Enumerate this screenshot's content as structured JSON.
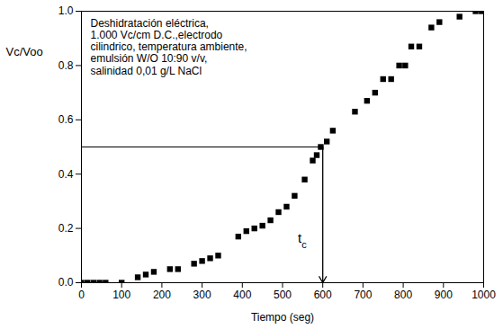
{
  "chart_data": {
    "type": "scatter",
    "marker": "square",
    "color": "#000000",
    "x_label": "Tiempo (seg)",
    "y_label": "Vc/Voo",
    "annotation": [
      "Deshidratación eléctrica,",
      "1.000 Vc/cm D.C.,electrodo",
      "cilindrico, temperatura ambiente,",
      "emulsión W/O 10:90 v/v,",
      "salinidad 0,01 g/L NaCl"
    ],
    "tc": 600,
    "tc_level": 0.5,
    "tc_label": "tc",
    "x": [
      0,
      15,
      30,
      45,
      60,
      100,
      140,
      160,
      180,
      220,
      240,
      280,
      300,
      320,
      340,
      390,
      410,
      430,
      450,
      470,
      490,
      510,
      530,
      555,
      575,
      585,
      595,
      610,
      625,
      680,
      710,
      730,
      750,
      770,
      790,
      805,
      820,
      840,
      870,
      890,
      940,
      980,
      995
    ],
    "values": [
      0,
      0,
      0,
      0,
      0,
      0,
      0.02,
      0.03,
      0.04,
      0.05,
      0.05,
      0.07,
      0.08,
      0.09,
      0.1,
      0.17,
      0.19,
      0.2,
      0.21,
      0.23,
      0.26,
      0.28,
      0.32,
      0.38,
      0.45,
      0.47,
      0.5,
      0.52,
      0.56,
      0.63,
      0.67,
      0.7,
      0.75,
      0.75,
      0.8,
      0.8,
      0.87,
      0.87,
      0.94,
      0.96,
      0.98,
      1.0,
      1.0
    ],
    "xlim": [
      0,
      1000
    ],
    "xticks": [
      0,
      100,
      200,
      300,
      400,
      500,
      600,
      700,
      800,
      900,
      1000
    ],
    "ylim": [
      0,
      1.0
    ],
    "yticks": [
      {
        "value": 0,
        "label": "0.0"
      },
      0.2,
      0.4,
      0.6,
      0.8,
      {
        "value": 1.0,
        "label": "1.0"
      }
    ],
    "grid": false
  }
}
